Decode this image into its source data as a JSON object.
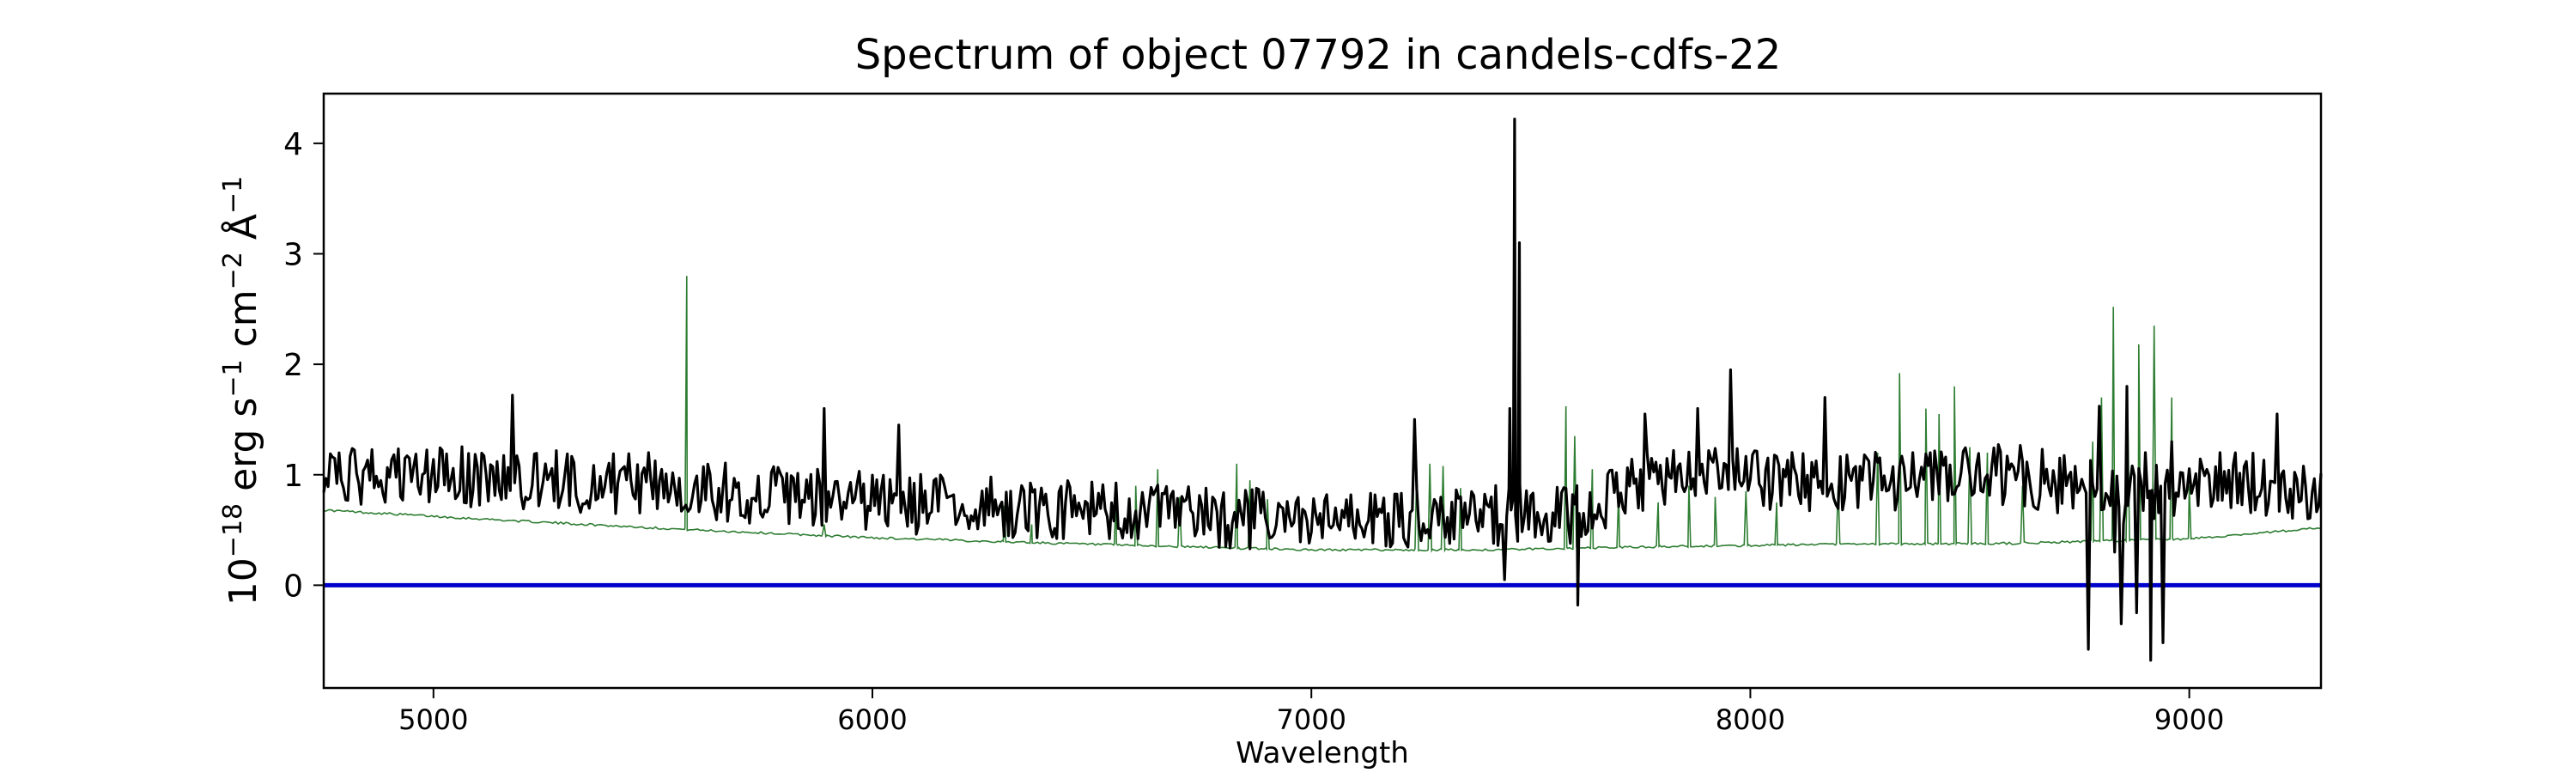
{
  "chart_data": {
    "type": "line",
    "title": "Spectrum of object 07792 in candels-cdfs-22",
    "xlabel": "Wavelength",
    "ylabel": {
      "base": "10",
      "exp1": "−18",
      "mid1": " erg s",
      "exp2": "−1",
      "mid2": " cm",
      "exp3": "−2",
      "mid3": " Å",
      "exp4": "−1"
    },
    "xlim": [
      4750,
      9300
    ],
    "ylim": [
      -0.93,
      4.45
    ],
    "xticks": [
      5000,
      6000,
      7000,
      8000,
      9000
    ],
    "yticks": [
      0,
      1,
      2,
      3,
      4
    ],
    "grid": false,
    "series": [
      {
        "role": "model",
        "color": "#2e7d32",
        "baseline": [
          [
            4750,
            0.68
          ],
          [
            5200,
            0.58
          ],
          [
            5600,
            0.5
          ],
          [
            6000,
            0.43
          ],
          [
            6500,
            0.37
          ],
          [
            7000,
            0.32
          ],
          [
            7400,
            0.32
          ],
          [
            7800,
            0.35
          ],
          [
            8200,
            0.37
          ],
          [
            8600,
            0.38
          ],
          [
            9000,
            0.42
          ],
          [
            9300,
            0.52
          ]
        ],
        "spikes": [
          [
            5577,
            2.8
          ],
          [
            5890,
            0.55
          ],
          [
            6300,
            0.72
          ],
          [
            6363,
            0.55
          ],
          [
            6555,
            0.85
          ],
          [
            6600,
            0.9
          ],
          [
            6650,
            1.05
          ],
          [
            6700,
            0.8
          ],
          [
            6830,
            1.1
          ],
          [
            6860,
            0.95
          ],
          [
            6900,
            0.78
          ],
          [
            7240,
            1.05
          ],
          [
            7270,
            1.1
          ],
          [
            7300,
            1.08
          ],
          [
            7340,
            0.88
          ],
          [
            7580,
            1.62
          ],
          [
            7600,
            1.35
          ],
          [
            7640,
            1.05
          ],
          [
            7700,
            0.85
          ],
          [
            7790,
            0.75
          ],
          [
            7860,
            0.9
          ],
          [
            7920,
            0.8
          ],
          [
            7990,
            0.85
          ],
          [
            8060,
            0.75
          ],
          [
            8200,
            0.9
          ],
          [
            8290,
            1.2
          ],
          [
            8340,
            1.92
          ],
          [
            8400,
            1.6
          ],
          [
            8430,
            1.55
          ],
          [
            8465,
            1.8
          ],
          [
            8500,
            1.25
          ],
          [
            8540,
            1.2
          ],
          [
            8620,
            0.9
          ],
          [
            8780,
            1.3
          ],
          [
            8800,
            1.7
          ],
          [
            8827,
            2.52
          ],
          [
            8860,
            1.5
          ],
          [
            8885,
            2.18
          ],
          [
            8920,
            2.35
          ],
          [
            8960,
            1.7
          ],
          [
            9000,
            0.9
          ]
        ]
      },
      {
        "role": "data",
        "color": "#000000",
        "anchors": [
          [
            4750,
            0.95
          ],
          [
            5000,
            1.0
          ],
          [
            5200,
            0.95
          ],
          [
            5500,
            0.92
          ],
          [
            5800,
            0.8
          ],
          [
            6000,
            0.75
          ],
          [
            6300,
            0.7
          ],
          [
            6500,
            0.68
          ],
          [
            6800,
            0.62
          ],
          [
            7000,
            0.56
          ],
          [
            7200,
            0.62
          ],
          [
            7400,
            0.62
          ],
          [
            7600,
            0.65
          ],
          [
            7800,
            1.0
          ],
          [
            8000,
            0.95
          ],
          [
            8300,
            0.95
          ],
          [
            8600,
            1.0
          ],
          [
            8900,
            0.8
          ],
          [
            9100,
            0.95
          ],
          [
            9300,
            0.85
          ]
        ],
        "noise": 0.28,
        "features": [
          [
            7463,
            4.22
          ],
          [
            7474,
            3.1
          ],
          [
            7452,
            1.6
          ],
          [
            7440,
            0.05
          ],
          [
            7607,
            -0.18
          ],
          [
            5180,
            1.72
          ],
          [
            5890,
            1.6
          ],
          [
            6060,
            1.45
          ],
          [
            7235,
            1.5
          ],
          [
            7760,
            1.55
          ],
          [
            7880,
            1.6
          ],
          [
            7955,
            1.95
          ],
          [
            8170,
            1.7
          ],
          [
            8770,
            -0.58
          ],
          [
            8795,
            1.62
          ],
          [
            8830,
            0.3
          ],
          [
            8845,
            -0.35
          ],
          [
            8858,
            1.8
          ],
          [
            8880,
            -0.25
          ],
          [
            8900,
            1.2
          ],
          [
            8912,
            -0.68
          ],
          [
            8940,
            -0.52
          ],
          [
            8960,
            1.3
          ],
          [
            9200,
            1.55
          ]
        ]
      },
      {
        "role": "zero-line",
        "color": "#0000cc",
        "y": 0
      }
    ]
  }
}
